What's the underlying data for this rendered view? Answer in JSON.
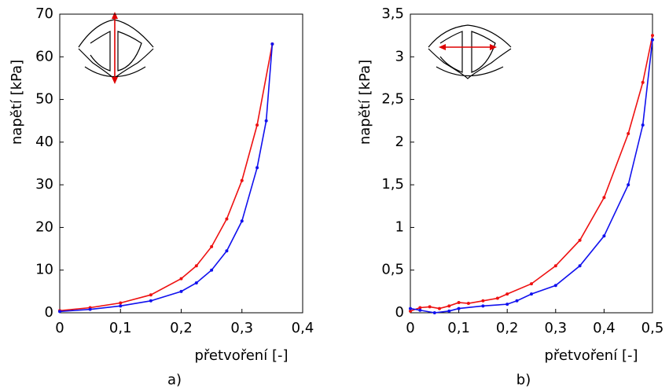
{
  "chart_data": [
    {
      "type": "line",
      "ylabel": "napětí [kPa]",
      "xlabel": "přetvoření [-]",
      "caption": "a)",
      "xlim": [
        0,
        0.4
      ],
      "ylim": [
        0,
        70
      ],
      "xticks": [
        0,
        {
          "value": 0.1,
          "label": "0,1"
        },
        {
          "value": 0.2,
          "label": "0,2"
        },
        {
          "value": 0.3,
          "label": "0,3"
        },
        {
          "value": 0.4,
          "label": "0,4"
        }
      ],
      "yticks": [
        0,
        10,
        20,
        30,
        40,
        50,
        60,
        70
      ],
      "series": [
        {
          "color": "#ee1111",
          "x": [
            0,
            0.05,
            0.1,
            0.15,
            0.2,
            0.225,
            0.25,
            0.275,
            0.3,
            0.325,
            0.35
          ],
          "values": [
            0.5,
            1.2,
            2.3,
            4.2,
            8,
            11,
            15.5,
            22,
            31,
            44,
            63
          ]
        },
        {
          "color": "#1111ee",
          "x": [
            0,
            0.05,
            0.1,
            0.15,
            0.2,
            0.225,
            0.25,
            0.275,
            0.3,
            0.325,
            0.34,
            0.35
          ],
          "values": [
            0.3,
            0.8,
            1.6,
            2.8,
            5,
            7,
            10,
            14.5,
            21.5,
            34,
            45,
            63
          ]
        }
      ]
    },
    {
      "type": "line",
      "ylabel": "napětí [kPa]",
      "xlabel": "přetvoření [-]",
      "caption": "b)",
      "xlim": [
        0,
        0.5
      ],
      "ylim": [
        0,
        3.5
      ],
      "xticks": [
        0,
        {
          "value": 0.1,
          "label": "0,1"
        },
        {
          "value": 0.2,
          "label": "0,2"
        },
        {
          "value": 0.3,
          "label": "0,3"
        },
        {
          "value": 0.4,
          "label": "0,4"
        },
        {
          "value": 0.5,
          "label": "0,5"
        }
      ],
      "yticks": [
        0,
        {
          "value": 0.5,
          "label": "0,5"
        },
        1,
        {
          "value": 1.5,
          "label": "1,5"
        },
        2,
        {
          "value": 2.5,
          "label": "2,5"
        },
        3,
        {
          "value": 3.5,
          "label": "3,5"
        }
      ],
      "series": [
        {
          "color": "#ee1111",
          "x": [
            0,
            0.02,
            0.04,
            0.06,
            0.08,
            0.1,
            0.12,
            0.15,
            0.18,
            0.2,
            0.25,
            0.3,
            0.35,
            0.4,
            0.45,
            0.48,
            0.5
          ],
          "values": [
            0.02,
            0.06,
            0.07,
            0.05,
            0.08,
            0.12,
            0.11,
            0.14,
            0.17,
            0.22,
            0.34,
            0.55,
            0.85,
            1.35,
            2.1,
            2.7,
            3.25
          ]
        },
        {
          "color": "#1111ee",
          "x": [
            0,
            0.02,
            0.05,
            0.08,
            0.1,
            0.15,
            0.2,
            0.22,
            0.25,
            0.3,
            0.35,
            0.4,
            0.45,
            0.48,
            0.5
          ],
          "values": [
            0.05,
            0.03,
            0,
            0.02,
            0.05,
            0.08,
            0.1,
            0.14,
            0.22,
            0.32,
            0.55,
            0.9,
            1.5,
            2.2,
            3.2
          ]
        }
      ]
    }
  ]
}
